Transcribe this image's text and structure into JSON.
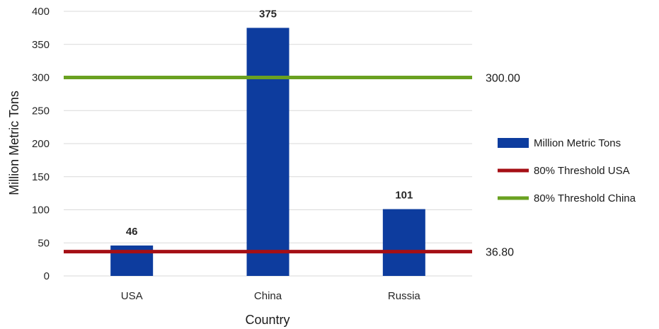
{
  "chart_data": {
    "type": "bar",
    "categories": [
      "USA",
      "China",
      "Russia"
    ],
    "series": [
      {
        "name": "Million Metric Tons",
        "values": [
          46,
          375,
          101
        ],
        "color": "#0D3C9E"
      }
    ],
    "reference_lines": [
      {
        "name": "80% Threshold USA",
        "value": 36.8,
        "label": "36.80",
        "color": "#A50F15"
      },
      {
        "name": "80% Threshold China",
        "value": 300,
        "label": "300.00",
        "color": "#6AA121"
      }
    ],
    "xlabel": "Country",
    "ylabel": "Million Metric Tons",
    "ylim": [
      0,
      400
    ],
    "yticks": [
      0,
      50,
      100,
      150,
      200,
      250,
      300,
      350,
      400
    ],
    "grid": true,
    "legend_position": "right"
  }
}
